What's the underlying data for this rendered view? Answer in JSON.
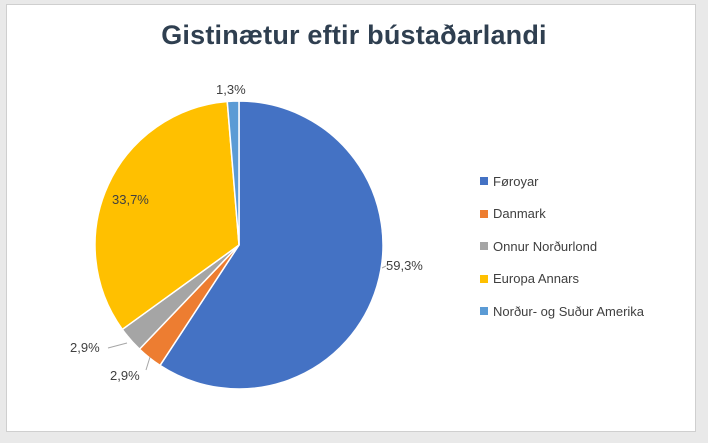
{
  "chart_data": {
    "type": "pie",
    "title": "Gistinætur eftir bústaðarlandi",
    "categories": [
      "Føroyar",
      "Danmark",
      "Onnur Norðurlond",
      "Europa Annars",
      "Norður- og Suður Amerika"
    ],
    "values": [
      59.3,
      2.9,
      2.9,
      33.7,
      1.3
    ],
    "labels": [
      "59,3%",
      "2,9%",
      "2,9%",
      "33,7%",
      "1,3%"
    ],
    "colors": [
      "#4472c4",
      "#ed7d31",
      "#a5a5a5",
      "#ffc000",
      "#5b9bd5"
    ],
    "legend_position": "right",
    "start_angle_deg": 0,
    "direction": "clockwise"
  }
}
